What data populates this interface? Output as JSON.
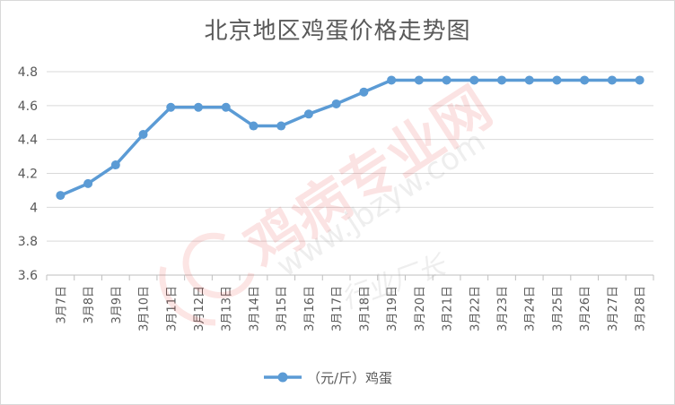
{
  "chart_data": {
    "type": "line",
    "title": "北京地区鸡蛋价格走势图",
    "xlabel": "",
    "ylabel": "",
    "categories": [
      "3月7日",
      "3月8日",
      "3月9日",
      "3月10日",
      "3月11日",
      "3月12日",
      "3月13日",
      "3月14日",
      "3月15日",
      "3月16日",
      "3月17日",
      "3月18日",
      "3月19日",
      "3月20日",
      "3月21日",
      "3月22日",
      "3月23日",
      "3月24日",
      "3月25日",
      "3月26日",
      "3月27日",
      "3月28日"
    ],
    "series": [
      {
        "name": "（元/斤）鸡蛋",
        "values": [
          4.07,
          4.14,
          4.25,
          4.43,
          4.59,
          4.59,
          4.59,
          4.48,
          4.48,
          4.55,
          4.61,
          4.68,
          4.75,
          4.75,
          4.75,
          4.75,
          4.75,
          4.75,
          4.75,
          4.75,
          4.75,
          4.75
        ],
        "color": "#5b9bd5"
      }
    ],
    "y_ticks": [
      "3.6",
      "3.8",
      "4",
      "4.2",
      "4.4",
      "4.6",
      "4.8"
    ],
    "ylim": [
      3.6,
      4.8
    ],
    "grid": true,
    "legend_position": "bottom",
    "watermark": {
      "text": "鸡病专业网",
      "url": "www.jbzyw.com",
      "handwriting": "行业厂长"
    }
  }
}
